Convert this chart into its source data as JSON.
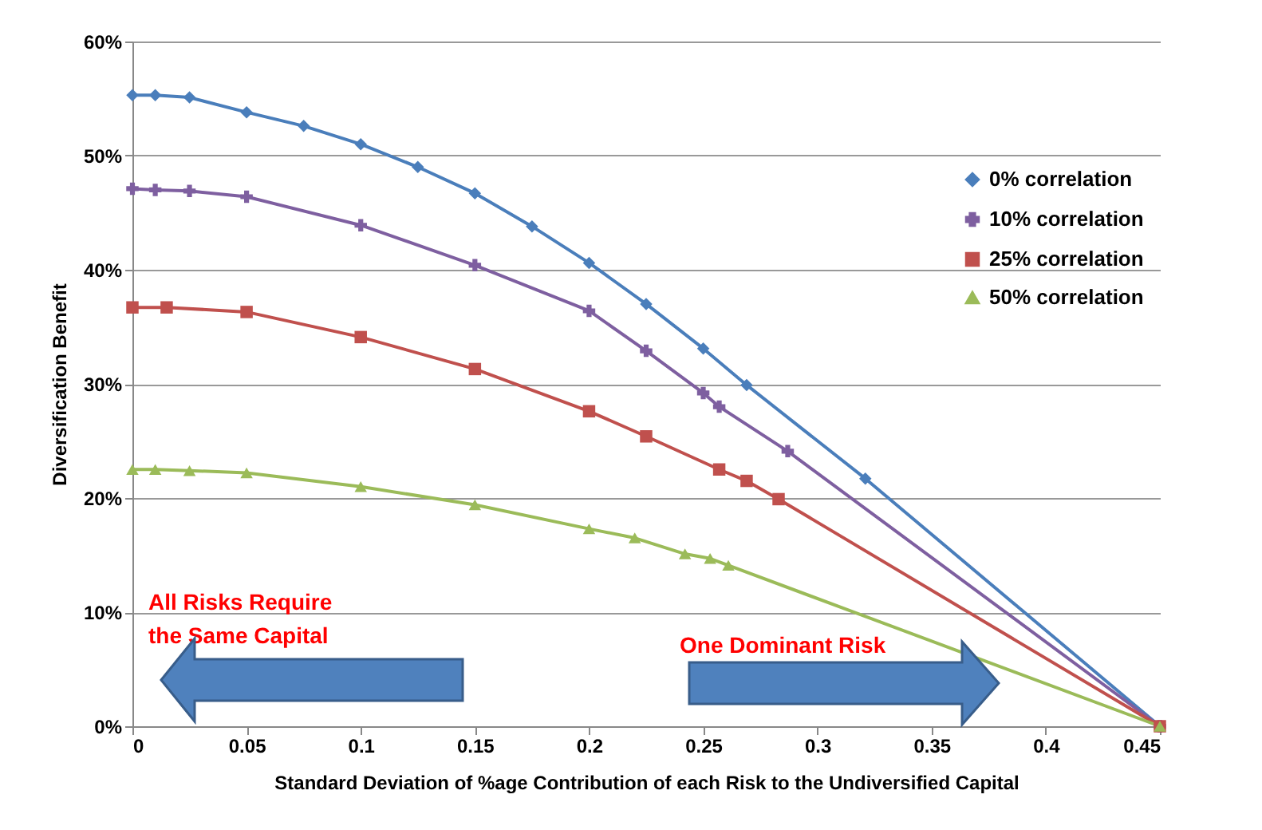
{
  "chart_data": {
    "type": "line",
    "xlabel": "Standard Deviation of %age Contribution of each Risk to the Undiversified Capital",
    "ylabel": "Diversification Benefit",
    "series": [
      {
        "name": "0% correlation",
        "color": "#4a7ebb",
        "marker": "diamond",
        "x": [
          0,
          0.01,
          0.025,
          0.05,
          0.075,
          0.1,
          0.125,
          0.15,
          0.175,
          0.2,
          0.225,
          0.25,
          0.269,
          0.321,
          0.45
        ],
        "values": [
          55.3,
          55.3,
          55.1,
          53.8,
          52.6,
          51.0,
          49.0,
          46.7,
          43.8,
          40.6,
          37.0,
          33.1,
          29.9,
          21.7,
          0
        ]
      },
      {
        "name": "10% correlation",
        "color": "#7e5fa0",
        "marker": "cross",
        "x": [
          0,
          0.01,
          0.025,
          0.05,
          0.1,
          0.15,
          0.2,
          0.225,
          0.25,
          0.257,
          0.287,
          0.45
        ],
        "values": [
          47.1,
          47.0,
          46.9,
          46.4,
          43.9,
          40.4,
          36.4,
          32.9,
          29.2,
          28.0,
          24.1,
          0
        ]
      },
      {
        "name": "25% correlation",
        "color": "#c0504d",
        "marker": "square",
        "x": [
          0,
          0.015,
          0.05,
          0.1,
          0.15,
          0.2,
          0.225,
          0.257,
          0.269,
          0.283,
          0.45
        ],
        "values": [
          36.7,
          36.7,
          36.3,
          34.1,
          31.3,
          27.6,
          25.4,
          22.5,
          21.5,
          19.9,
          0
        ]
      },
      {
        "name": "50% correlation",
        "color": "#9bbb59",
        "marker": "triangle",
        "x": [
          0,
          0.01,
          0.025,
          0.05,
          0.1,
          0.15,
          0.2,
          0.22,
          0.242,
          0.253,
          0.261,
          0.45
        ],
        "values": [
          22.5,
          22.5,
          22.4,
          22.2,
          21.0,
          19.4,
          17.3,
          16.5,
          15.1,
          14.7,
          14.1,
          0
        ]
      }
    ],
    "xlim": [
      0,
      0.45
    ],
    "xticks": [
      0,
      0.05,
      0.1,
      0.15,
      0.2,
      0.25,
      0.3,
      0.35,
      0.4,
      0.45
    ],
    "ylim": [
      0,
      60
    ],
    "yticks": [
      {
        "value": 0,
        "label": "0%"
      },
      {
        "value": 10,
        "label": "10%"
      },
      {
        "value": 20,
        "label": "20%"
      },
      {
        "value": 30,
        "label": "30%"
      },
      {
        "value": 40,
        "label": "40%"
      },
      {
        "value": 50,
        "label": "50%"
      },
      {
        "value": 60,
        "label": "60%"
      }
    ],
    "grid": "y",
    "legend": "right",
    "annotations": [
      "All Risks  Require\nthe Same Capital",
      "One Dominant Risk"
    ]
  }
}
